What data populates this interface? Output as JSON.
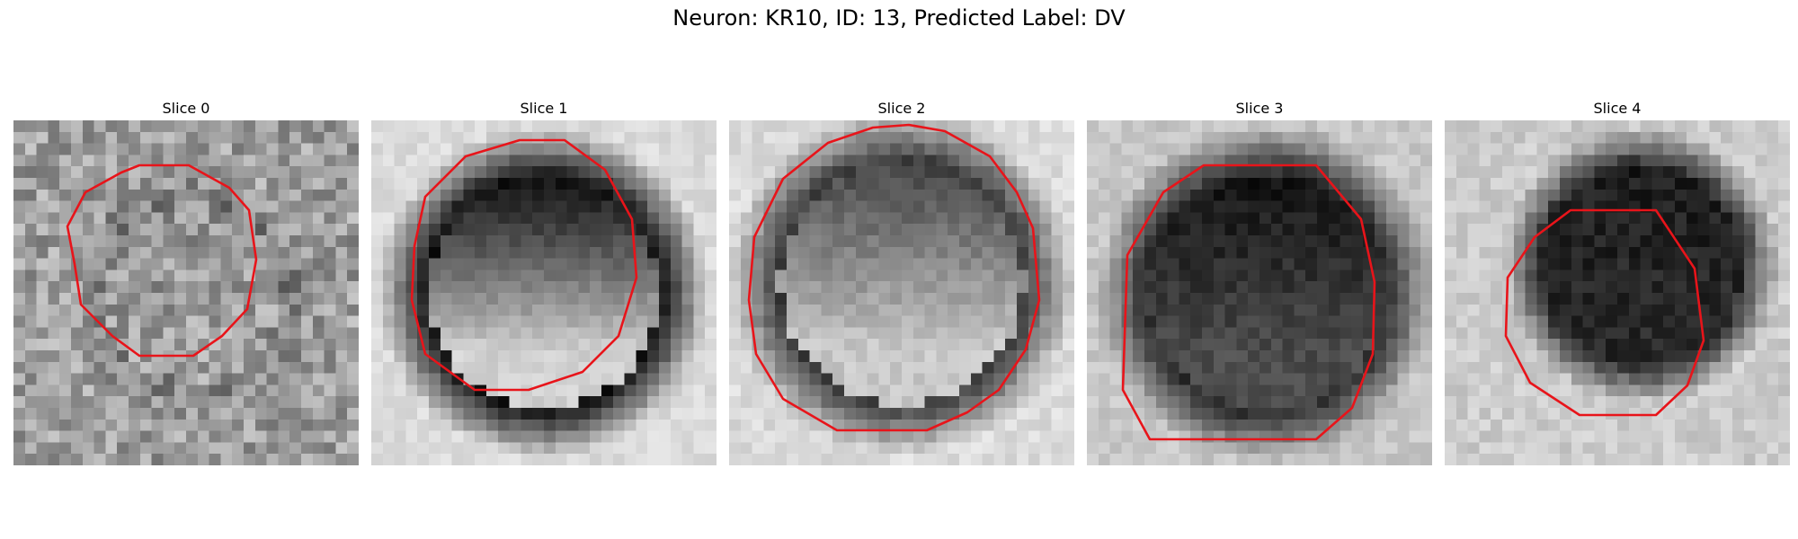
{
  "figure": {
    "title": "Neuron: KR10, ID: 13, Predicted Label: DV",
    "contour_color": "#e8141a"
  },
  "panels": [
    {
      "title": "Slice 0"
    },
    {
      "title": "Slice 1"
    },
    {
      "title": "Slice 2"
    },
    {
      "title": "Slice 3"
    },
    {
      "title": "Slice 4"
    }
  ]
}
